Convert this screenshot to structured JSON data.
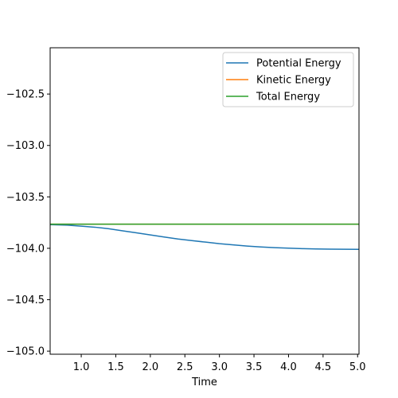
{
  "chart_data": {
    "type": "line",
    "xlabel": "Time",
    "ylabel": "",
    "xlim": [
      0.55,
      5.02
    ],
    "ylim": [
      -105.03,
      -102.05
    ],
    "xticks": [
      1.0,
      1.5,
      2.0,
      2.5,
      3.0,
      3.5,
      4.0,
      4.5,
      5.0
    ],
    "xtick_labels": [
      "1.0",
      "1.5",
      "2.0",
      "2.5",
      "3.0",
      "3.5",
      "4.0",
      "4.5",
      "5.0"
    ],
    "yticks": [
      -102.5,
      -103.0,
      -103.5,
      -104.0,
      -104.5,
      -105.0
    ],
    "ytick_labels": [
      "−102.5",
      "−103.0",
      "−103.5",
      "−104.0",
      "−104.5",
      "−105.0"
    ],
    "legend": {
      "placement": "top-right"
    },
    "grid": false,
    "series": [
      {
        "name": "Potential Energy",
        "color": "#1f77b4",
        "x": [
          0.55,
          0.8,
          1.0,
          1.2,
          1.4,
          1.6,
          1.8,
          2.0,
          2.2,
          2.4,
          2.6,
          2.8,
          3.0,
          3.2,
          3.4,
          3.6,
          3.8,
          4.0,
          4.2,
          4.4,
          4.6,
          4.8,
          5.02
        ],
        "y": [
          -103.77,
          -103.775,
          -103.785,
          -103.795,
          -103.81,
          -103.83,
          -103.85,
          -103.87,
          -103.89,
          -103.91,
          -103.925,
          -103.94,
          -103.955,
          -103.967,
          -103.978,
          -103.987,
          -103.994,
          -103.999,
          -104.003,
          -104.006,
          -104.008,
          -104.009,
          -104.01
        ]
      },
      {
        "name": "Kinetic Energy",
        "color": "#ff7f0e",
        "x": [
          0.55,
          5.02
        ],
        "y": [
          -103.765,
          -103.765
        ]
      },
      {
        "name": "Total Energy",
        "color": "#2ca02c",
        "x": [
          0.55,
          5.02
        ],
        "y": [
          -103.765,
          -103.765
        ]
      }
    ]
  }
}
